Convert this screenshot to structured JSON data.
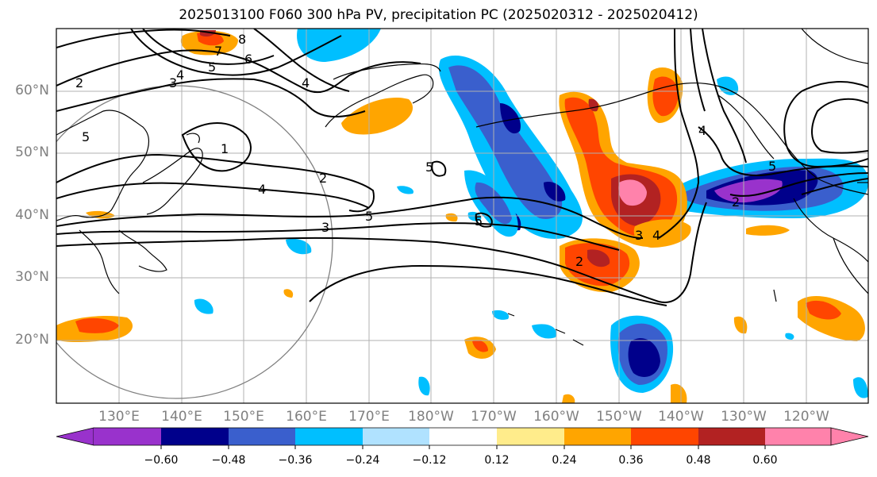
{
  "title": "2025013100 F060 300 hPa PV, precipitation PC (2025020312 - 2025020412)",
  "lat_labels": [
    "60°N",
    "50°N",
    "40°N",
    "30°N",
    "20°N"
  ],
  "lon_labels": [
    "130°E",
    "140°E",
    "150°E",
    "160°E",
    "170°E",
    "180°W",
    "170°W",
    "160°W",
    "150°W",
    "140°W",
    "130°W",
    "120°W"
  ],
  "colorbar": {
    "ticks": [
      "−0.60",
      "−0.48",
      "−0.36",
      "−0.24",
      "−0.12",
      "0.12",
      "0.24",
      "0.36",
      "0.48",
      "0.60"
    ],
    "colors": [
      "#9932cc",
      "#00008b",
      "#3a5fcd",
      "#00bfff",
      "#b0e2ff",
      "#ffffff",
      "#ffec8b",
      "#ffa500",
      "#ff4500",
      "#b22222",
      "#ff82ab"
    ]
  },
  "contour_labels": [
    "8",
    "7",
    "6",
    "5",
    "4",
    "3",
    "2",
    "5",
    "1",
    "2",
    "4",
    "3",
    "5",
    "4",
    "5",
    "5",
    "4",
    "3",
    "2",
    "4",
    "5",
    "2"
  ]
}
